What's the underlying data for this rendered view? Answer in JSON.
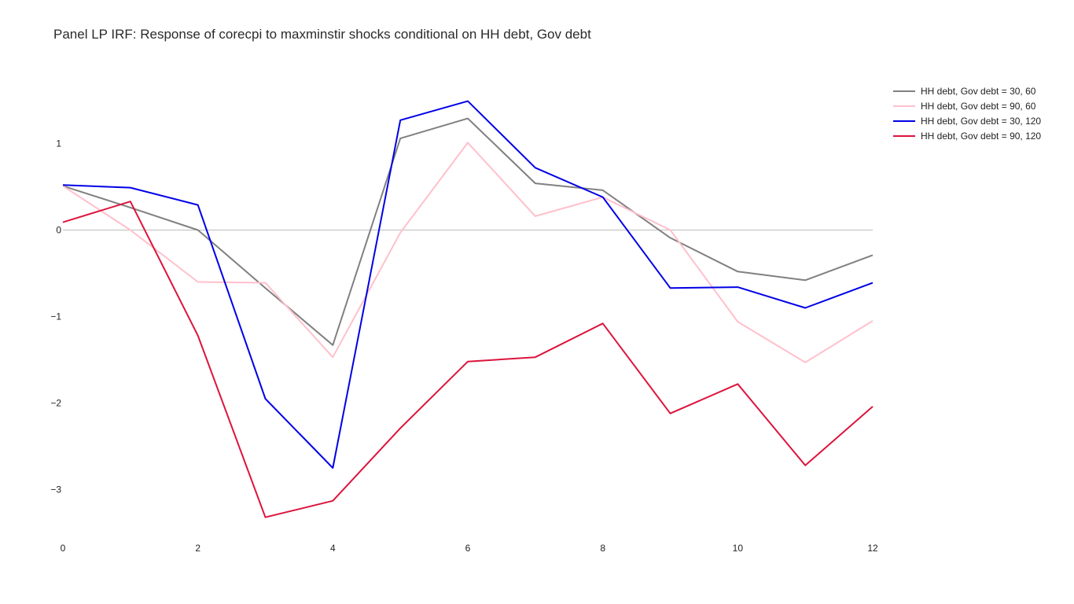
{
  "chart_data": {
    "type": "line",
    "title": "Panel LP IRF: Response of corecpi to maxminstir shocks conditional on HH debt, Gov debt",
    "xlabel": "",
    "ylabel": "",
    "x": [
      0,
      1,
      2,
      3,
      4,
      5,
      6,
      7,
      8,
      9,
      10,
      11,
      12
    ],
    "xlim": [
      0,
      12
    ],
    "ylim": [
      -3.6,
      2.0
    ],
    "x_ticks": [
      0,
      2,
      4,
      6,
      8,
      10,
      12
    ],
    "x_tick_labels": [
      "0",
      "2",
      "4",
      "6",
      "8",
      "10",
      "12"
    ],
    "y_ticks": [
      1,
      0,
      -1,
      -2,
      -3
    ],
    "y_tick_labels": [
      "1",
      "0",
      "−1",
      "−2",
      "−3"
    ],
    "zero_line": true,
    "grid": false,
    "legend_position": "top-right",
    "series": [
      {
        "name": "HH debt, Gov debt = 30, 60",
        "color": "#808080",
        "values": [
          0.51,
          0.26,
          0.0,
          -0.67,
          -1.33,
          1.06,
          1.29,
          0.54,
          0.46,
          -0.09,
          -0.48,
          -0.58,
          -0.29
        ]
      },
      {
        "name": "HH debt, Gov debt = 90, 60",
        "color": "#ffc0cb",
        "values": [
          0.51,
          0.0,
          -0.6,
          -0.61,
          -1.47,
          -0.03,
          1.01,
          0.16,
          0.38,
          0.0,
          -1.06,
          -1.53,
          -1.05
        ]
      },
      {
        "name": "HH debt, Gov debt = 30, 120",
        "color": "#0000e6",
        "values": [
          0.52,
          0.49,
          0.29,
          -1.95,
          -2.75,
          1.27,
          1.49,
          0.72,
          0.38,
          -0.67,
          -0.66,
          -0.9,
          -0.61
        ]
      },
      {
        "name": "HH debt, Gov debt = 90, 120",
        "color": "#dc143c",
        "values": [
          0.09,
          0.33,
          -1.22,
          -3.32,
          -3.13,
          -2.29,
          -1.52,
          -1.47,
          -1.08,
          -2.12,
          -1.78,
          -2.72,
          -2.04
        ]
      }
    ]
  }
}
